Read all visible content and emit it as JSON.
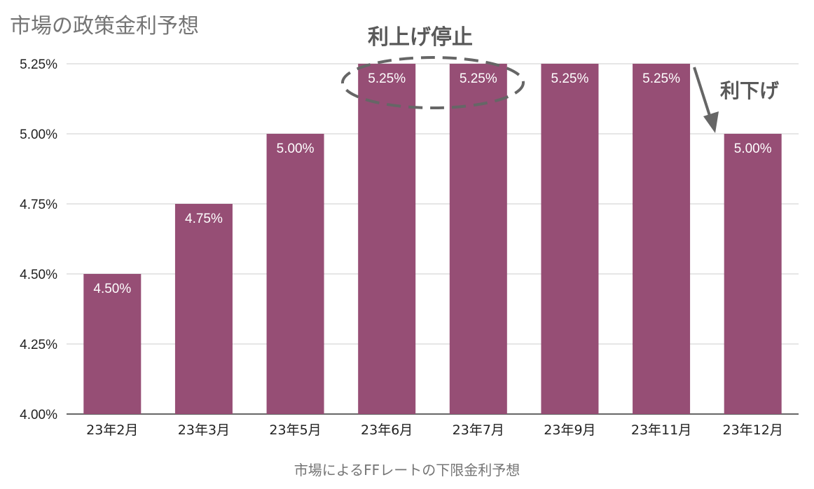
{
  "chart_data": {
    "type": "bar",
    "title": "市場の政策金利予想",
    "xlabel": "市場によるFFレートの下限金利予想",
    "ylabel": "",
    "categories": [
      "23年2月",
      "23年3月",
      "23年5月",
      "23年6月",
      "23年7月",
      "23年9月",
      "23年11月",
      "23年12月"
    ],
    "series": [
      {
        "values": [
          4.5,
          4.75,
          5.0,
          5.25,
          5.25,
          5.25,
          5.25,
          5.0
        ]
      }
    ],
    "data_labels": [
      "4.50%",
      "4.75%",
      "5.00%",
      "5.25%",
      "5.25%",
      "5.25%",
      "5.25%",
      "5.00%"
    ],
    "ylim": [
      4.0,
      5.25
    ],
    "yticks": [
      4.0,
      4.25,
      4.5,
      4.75,
      5.0,
      5.25
    ],
    "ytick_labels": [
      "4.00%",
      "4.25%",
      "4.50%",
      "4.75%",
      "5.00%",
      "5.25%"
    ],
    "grid": true,
    "legend": "none",
    "bar_color": "#964e75",
    "annotations": {
      "pause": "利上げ停止",
      "cut": "利下げ"
    }
  }
}
